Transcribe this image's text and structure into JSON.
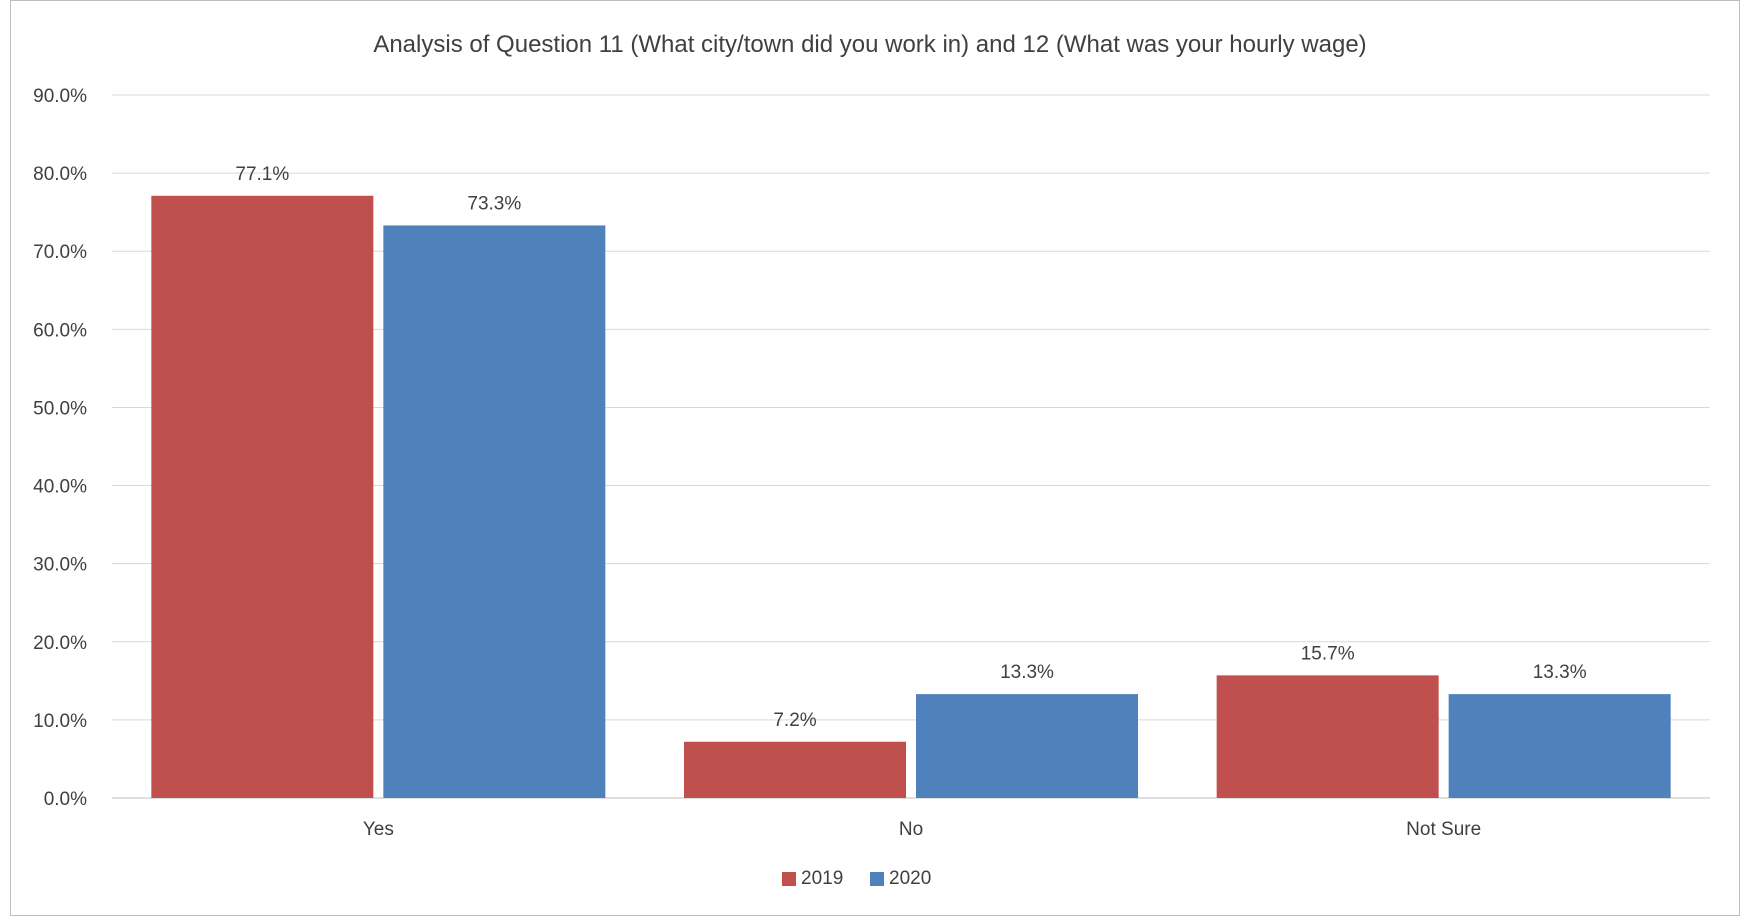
{
  "chart_data": {
    "type": "bar",
    "title": "Analysis of Question 11 (What city/town did you work in) and 12 (What was your hourly wage)",
    "categories": [
      "Yes",
      "No",
      "Not Sure"
    ],
    "series": [
      {
        "name": "2019",
        "color": "#c0504d",
        "values": [
          77.1,
          7.2,
          15.7
        ],
        "labels": [
          "77.1%",
          "7.2%",
          "15.7%"
        ]
      },
      {
        "name": "2020",
        "color": "#4f81bd",
        "values": [
          73.3,
          13.3,
          13.3
        ],
        "labels": [
          "73.3%",
          "13.3%",
          "13.3%"
        ]
      }
    ],
    "y_ticks": [
      "0.0%",
      "10.0%",
      "20.0%",
      "30.0%",
      "40.0%",
      "50.0%",
      "60.0%",
      "70.0%",
      "80.0%",
      "90.0%"
    ],
    "ylim": [
      0,
      90
    ],
    "grid": true,
    "legend_position": "bottom"
  }
}
